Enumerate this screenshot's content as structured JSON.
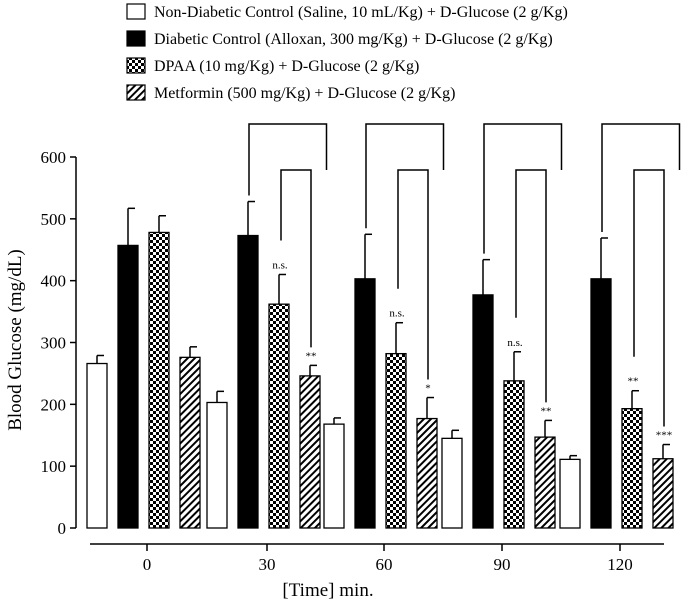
{
  "chart_data": {
    "type": "bar",
    "title": "",
    "xlabel": "[Time] min.",
    "ylabel": "Blood Glucose (mg/dL)",
    "ylim": [
      0,
      600
    ],
    "yticks": [
      "0",
      "100",
      "200",
      "300",
      "400",
      "500",
      "600"
    ],
    "categories": [
      "0",
      "30",
      "60",
      "90",
      "120"
    ],
    "legend_position": "top",
    "series": [
      {
        "name": "Non-Diabetic Control (Saline, 10 mL/Kg) + D-Glucose (2 g/Kg)",
        "pattern": "white",
        "values": [
          266,
          203,
          168,
          145,
          111
        ],
        "errors": [
          13,
          18,
          10,
          13,
          6
        ]
      },
      {
        "name": "Diabetic Control (Alloxan, 300 mg/Kg) + D-Glucose (2 g/Kg)",
        "pattern": "black",
        "values": [
          457,
          473,
          403,
          377,
          403
        ],
        "errors": [
          60,
          55,
          72,
          57,
          66
        ]
      },
      {
        "name": "DPAA (10 mg/Kg) + D-Glucose (2 g/Kg)",
        "pattern": "checker",
        "values": [
          478,
          362,
          282,
          238,
          193
        ],
        "errors": [
          27,
          48,
          50,
          47,
          29
        ]
      },
      {
        "name": "Metformin (500 mg/Kg) + D-Glucose (2 g/Kg)",
        "pattern": "hatch",
        "values": [
          276,
          246,
          177,
          147,
          112
        ],
        "errors": [
          17,
          17,
          34,
          27,
          23
        ]
      }
    ],
    "significance": {
      "dpaa": [
        "",
        "n.s.",
        "n.s.",
        "n.s.",
        "**"
      ],
      "metformin": [
        "",
        "**",
        "*",
        "**",
        "***"
      ]
    },
    "comparison_brackets_at": [
      "30",
      "60",
      "90",
      "120"
    ]
  }
}
